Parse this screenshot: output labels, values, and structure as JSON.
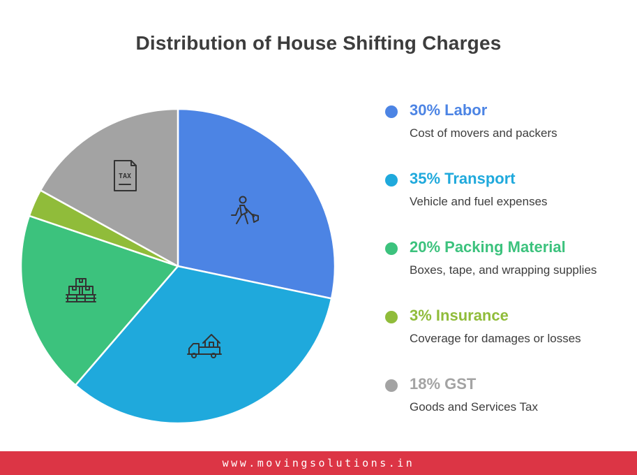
{
  "chart_data": {
    "type": "pie",
    "title": "Distribution of House Shifting Charges",
    "slices": [
      {
        "label": "30% Labor",
        "value": 30,
        "description": "Cost of movers and packers",
        "color": "#4c84e4",
        "icon": "worker-shovel-icon"
      },
      {
        "label": "35% Transport",
        "value": 35,
        "description": "Vehicle and fuel expenses",
        "color": "#1fa9dc",
        "icon": "truck-house-icon"
      },
      {
        "label": "20% Packing Material",
        "value": 20,
        "description": "Boxes, tape, and wrapping supplies",
        "color": "#3cc27d",
        "icon": "boxes-pallet-icon"
      },
      {
        "label": "3% Insurance",
        "value": 3,
        "description": "Coverage for damages or losses",
        "color": "#90bc3a",
        "icon": ""
      },
      {
        "label": "18% GST",
        "value": 18,
        "description": "Goods and Services Tax",
        "color": "#a3a3a3",
        "icon": "tax-document-icon"
      }
    ],
    "start": "12 o'clock",
    "direction": "clockwise",
    "legend_position": "right"
  },
  "tax_icon_text": "TAX",
  "footer": {
    "url": "www.movingsolutions.in",
    "color": "#dc3545"
  }
}
